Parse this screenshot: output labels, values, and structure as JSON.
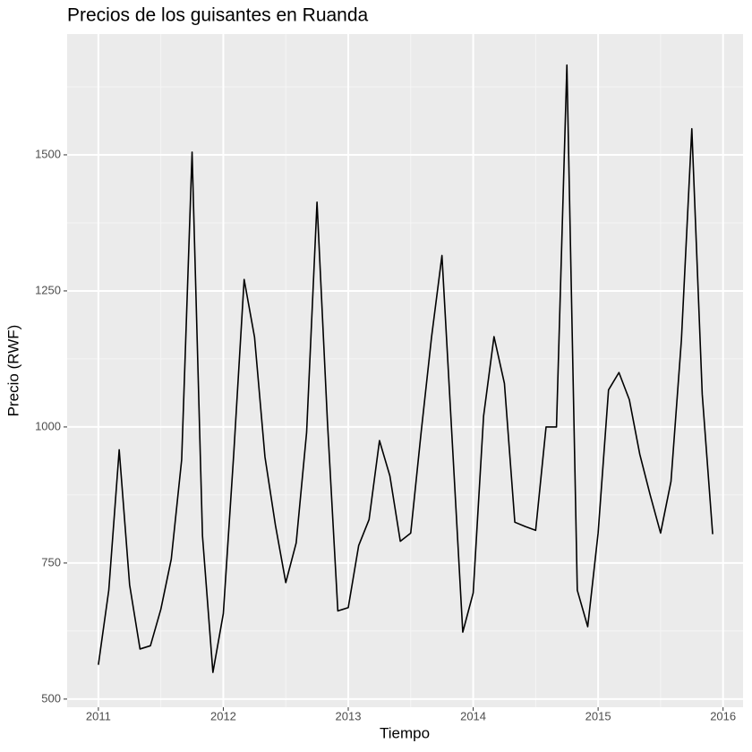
{
  "chart_data": {
    "type": "line",
    "title": "Precios de los guisantes en Ruanda",
    "x_label": "Tiempo",
    "y_label": "Precio (RWF)",
    "color": "#000000",
    "x": [
      2011,
      2011.0833,
      2011.1667,
      2011.25,
      2011.3333,
      2011.4167,
      2011.5,
      2011.5833,
      2011.6667,
      2011.75,
      2011.8333,
      2011.9167,
      2012,
      2012.0833,
      2012.1667,
      2012.25,
      2012.3333,
      2012.4167,
      2012.5,
      2012.5833,
      2012.6667,
      2012.75,
      2012.8333,
      2012.9167,
      2013,
      2013.0833,
      2013.1667,
      2013.25,
      2013.3333,
      2013.4167,
      2013.5,
      2013.5833,
      2013.6667,
      2013.75,
      2013.8333,
      2013.9167,
      2014,
      2014.0833,
      2014.1667,
      2014.25,
      2014.3333,
      2014.4167,
      2014.5,
      2014.5833,
      2014.6667,
      2014.75,
      2014.8333,
      2014.9167,
      2015,
      2015.0833,
      2015.1667,
      2015.25,
      2015.3333,
      2015.4167,
      2015.5,
      2015.5833,
      2015.6667,
      2015.75,
      2015.8333,
      2015.9167
    ],
    "values": [
      563,
      700,
      958,
      710,
      592,
      598,
      665,
      757,
      940,
      1505,
      800,
      549,
      657,
      950,
      1271,
      1165,
      945,
      820,
      714,
      787,
      990,
      1413,
      1010,
      662,
      668,
      782,
      830,
      975,
      910,
      790,
      805,
      990,
      1165,
      1315,
      970,
      623,
      695,
      1020,
      1166,
      1080,
      825,
      817,
      810,
      1000,
      1000,
      1665,
      700,
      633,
      805,
      1068,
      1100,
      1050,
      950,
      875,
      805,
      900,
      1160,
      1548,
      1060,
      803
    ],
    "xlim": [
      2010.75,
      2016.16
    ],
    "ylim": [
      485,
      1722
    ],
    "xticks": [
      2011,
      2012,
      2013,
      2014,
      2015,
      2016
    ],
    "yticks": [
      500,
      750,
      1000,
      1250,
      1500
    ],
    "xminor": [
      2011.5,
      2012.5,
      2013.5,
      2014.5,
      2015.5
    ],
    "yminor": [
      625,
      875,
      1125,
      1375,
      1625
    ],
    "grid": true
  }
}
